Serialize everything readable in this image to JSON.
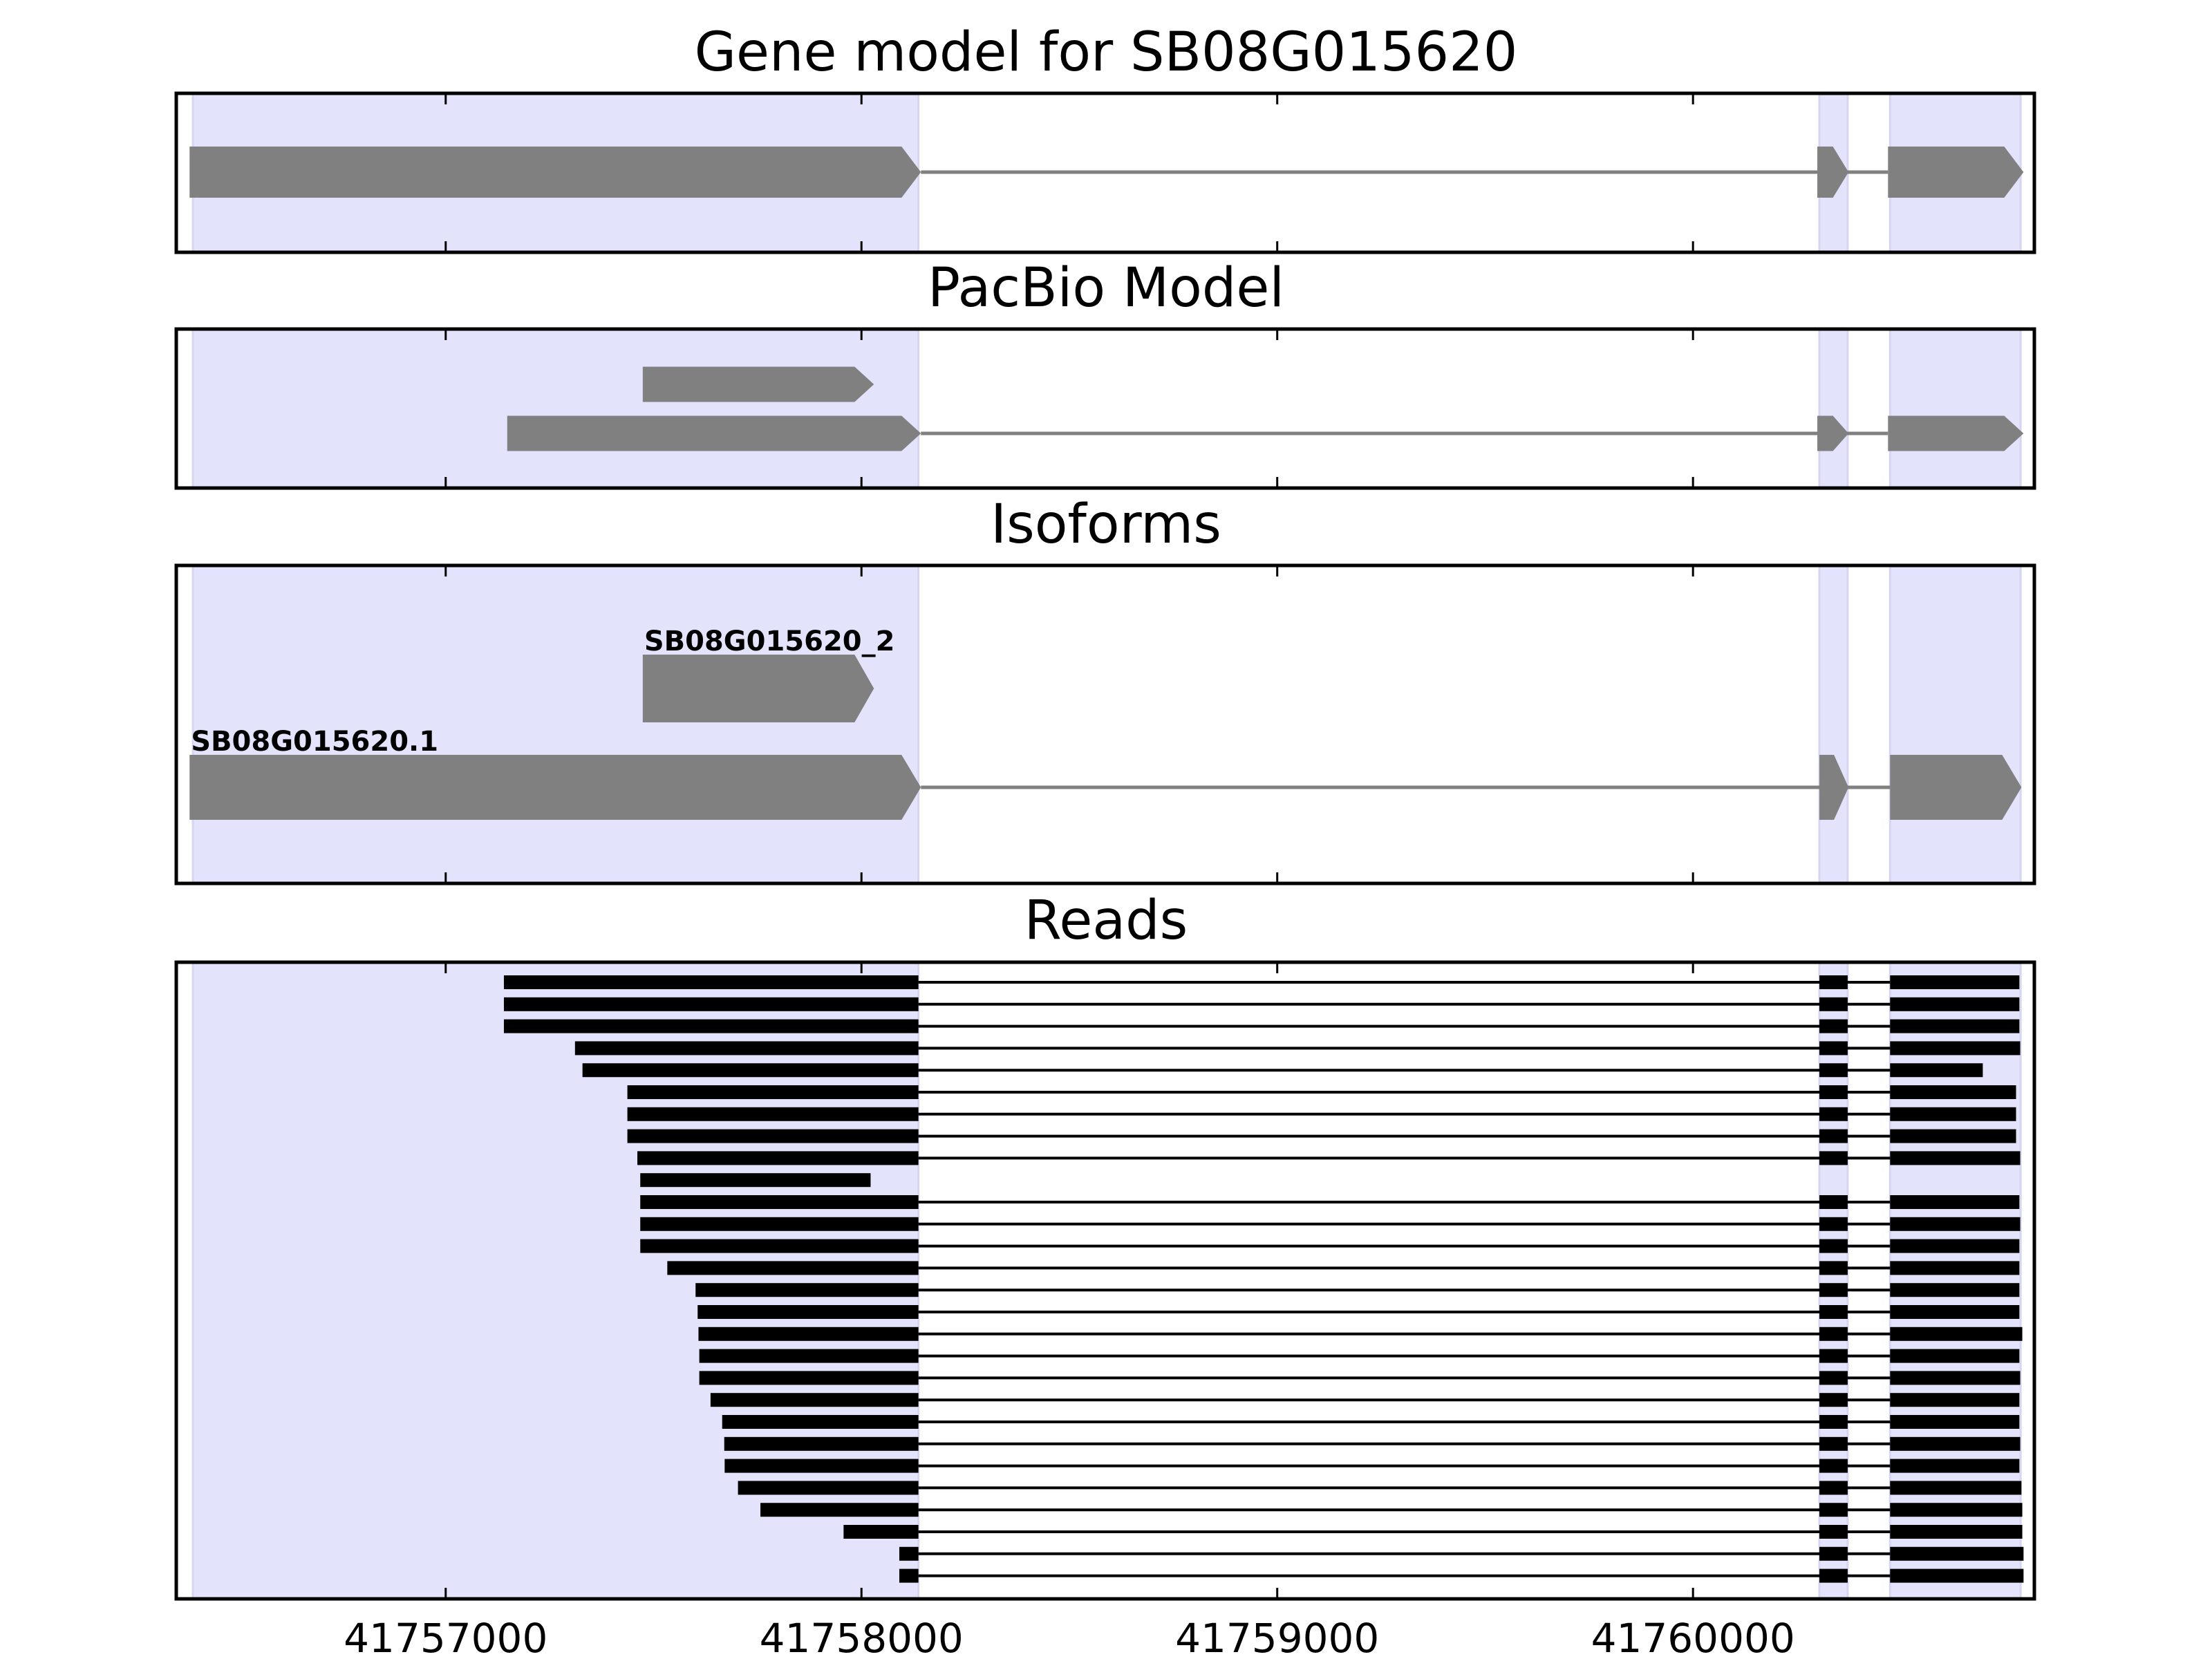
{
  "chart_data": {
    "type": "gene-track",
    "xlim": [
      41756352,
      41760821
    ],
    "xticks": [
      41757000,
      41758000,
      41759000,
      41760000
    ],
    "xtick_labels": [
      "41757000",
      "41758000",
      "41759000",
      "41760000"
    ],
    "shaded_regions": [
      [
        41756392,
        41758137
      ],
      [
        41760304,
        41760372
      ],
      [
        41760474,
        41760788
      ]
    ],
    "colors": {
      "shade": "#e3e3fc",
      "model": "#808080",
      "read": "#000000"
    },
    "panels": [
      {
        "title": "Gene model for SB08G015620",
        "features": [
          {
            "blocks": [
              [
                41756384,
                41758143
              ],
              [
                41760299,
                41760374
              ],
              [
                41760469,
                41760795
              ]
            ]
          }
        ]
      },
      {
        "title": "PacBio Model",
        "features": [
          {
            "blocks": [
              [
                41757474,
                41758030
              ]
            ]
          },
          {
            "blocks": [
              [
                41757148,
                41758143
              ],
              [
                41760299,
                41760374
              ],
              [
                41760469,
                41760795
              ]
            ]
          }
        ]
      },
      {
        "title": "Isoforms",
        "features": [
          {
            "label": "SB08G015620_2",
            "blocks": [
              [
                41757474,
                41758030
              ]
            ]
          },
          {
            "label": "SB08G015620.1",
            "blocks": [
              [
                41756384,
                41758143
              ],
              [
                41760304,
                41760374
              ],
              [
                41760474,
                41760790
              ]
            ]
          }
        ]
      },
      {
        "title": "Reads",
        "reads": [
          [
            41757140,
            41760785
          ],
          [
            41757140,
            41760785
          ],
          [
            41757140,
            41760785
          ],
          [
            41757311,
            41760787
          ],
          [
            41757329,
            41760697
          ],
          [
            41757437,
            41760777
          ],
          [
            41757437,
            41760777
          ],
          [
            41757437,
            41760777
          ],
          [
            41757461,
            41760787
          ],
          [
            41757468,
            41758022
          ],
          [
            41757468,
            41760785
          ],
          [
            41757468,
            41760787
          ],
          [
            41757468,
            41760785
          ],
          [
            41757533,
            41760785
          ],
          [
            41757601,
            41760785
          ],
          [
            41757606,
            41760785
          ],
          [
            41757608,
            41760792
          ],
          [
            41757610,
            41760785
          ],
          [
            41757610,
            41760787
          ],
          [
            41757637,
            41760785
          ],
          [
            41757665,
            41760785
          ],
          [
            41757670,
            41760787
          ],
          [
            41757671,
            41760785
          ],
          [
            41757703,
            41760790
          ],
          [
            41757757,
            41760792
          ],
          [
            41757957,
            41760792
          ],
          [
            41758091,
            41760795
          ],
          [
            41758091,
            41760795
          ]
        ],
        "exon1_end": 41758137,
        "exon2": [
          41760304,
          41760372
        ],
        "exon3_start": 41760474
      }
    ]
  }
}
